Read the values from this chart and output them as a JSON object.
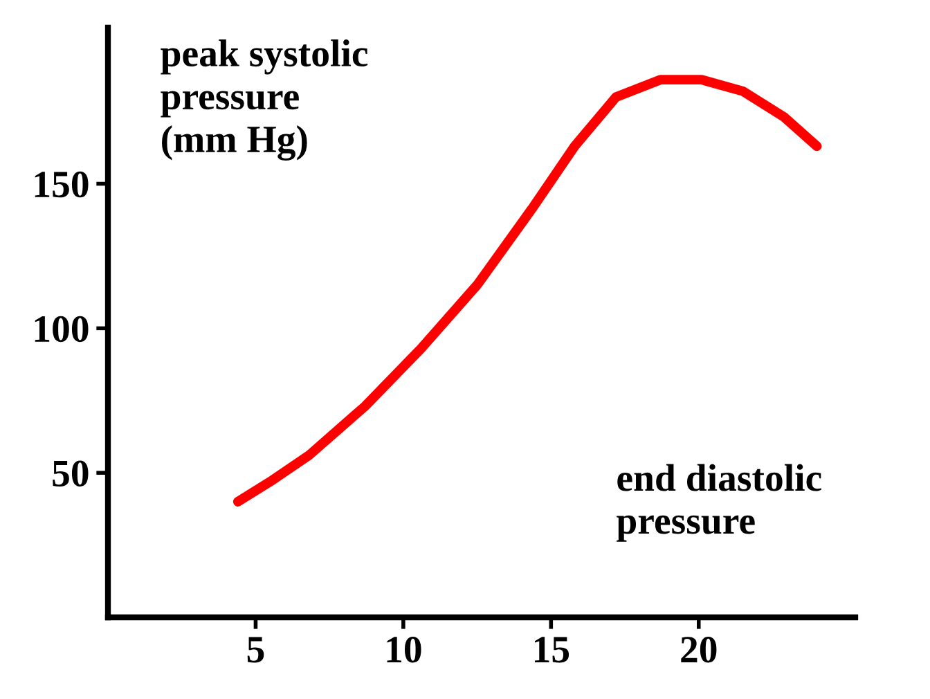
{
  "chart_data": {
    "type": "line",
    "ylabel": "peak systolic\npressure\n(mm Hg)",
    "xlabel": "end diastolic\npressure",
    "x": [
      4.4,
      5.5,
      6.8,
      8.7,
      10.6,
      12.5,
      14.4,
      15.8,
      17.2,
      18.7,
      20.1,
      21.5,
      22.9,
      24
    ],
    "series": [
      {
        "color": "#ff0000",
        "values": [
          40,
          47,
          56,
          73,
          93,
          115,
          142,
          163,
          180,
          186,
          186,
          182,
          173,
          163
        ]
      }
    ],
    "xlim": [
      0,
      25.3
    ],
    "ylim": [
      0,
      204
    ],
    "xticks": [
      5,
      10,
      15,
      20
    ],
    "yticks": [
      50,
      100,
      150
    ],
    "grid": false,
    "legend": false,
    "marker": "none",
    "line_style": "solid"
  }
}
